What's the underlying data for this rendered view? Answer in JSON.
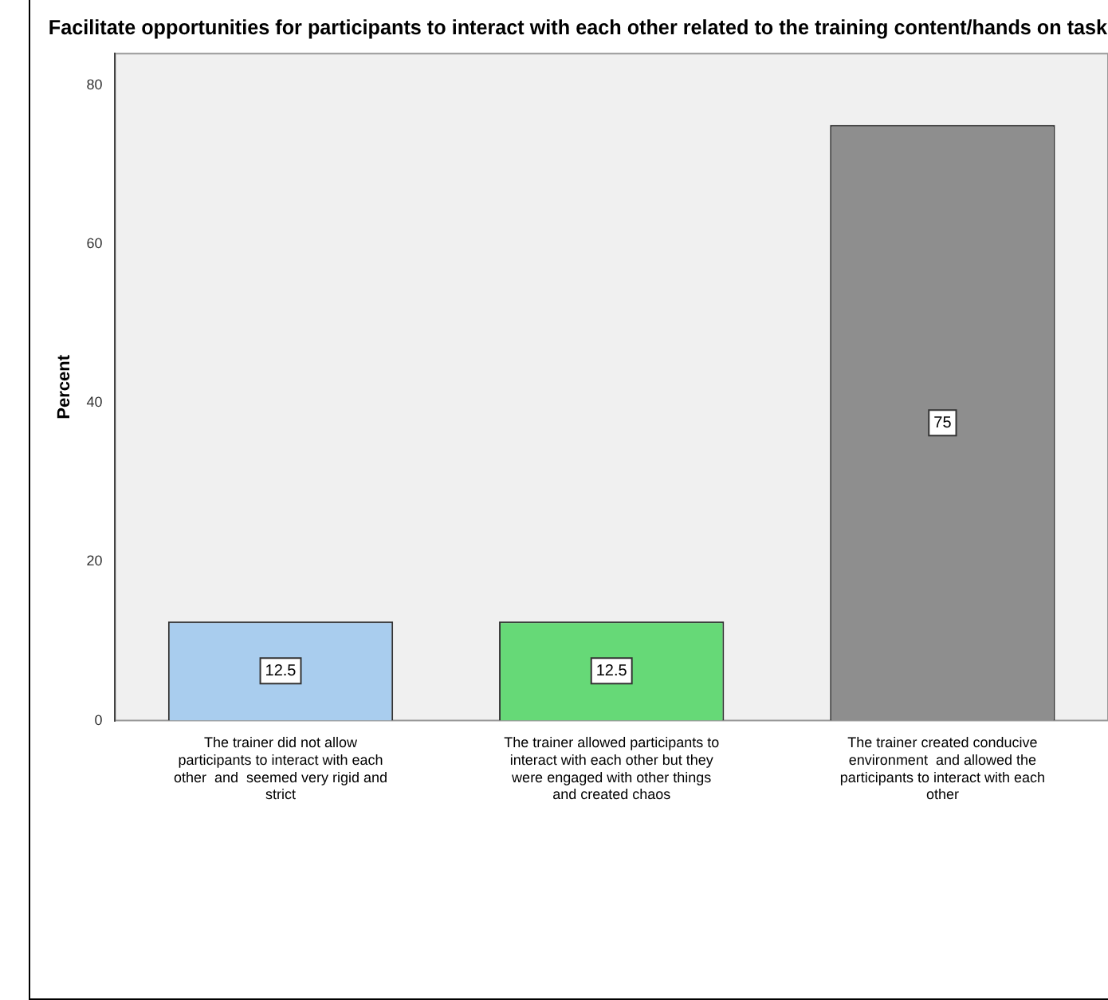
{
  "chart_data": {
    "type": "bar",
    "title": "Facilitate opportunities for participants to interact with each other related to the training content/hands on task",
    "ylabel": "Percent",
    "categories": [
      "The trainer did not allow participants to interact with each other  and  seemed very rigid and strict",
      "The trainer allowed participants to interact with each other but they were engaged with other things and created chaos",
      "The trainer created conducive environment  and allowed the participants to interact with each other"
    ],
    "values": [
      12.5,
      12.5,
      75
    ],
    "colors": [
      "#a9cdee",
      "#66d977",
      "#8e8e8e"
    ],
    "ylim": [
      0,
      84
    ],
    "yticks": [
      0,
      20,
      40,
      60,
      80
    ],
    "grid": false,
    "legend": false,
    "data_labels": true
  }
}
